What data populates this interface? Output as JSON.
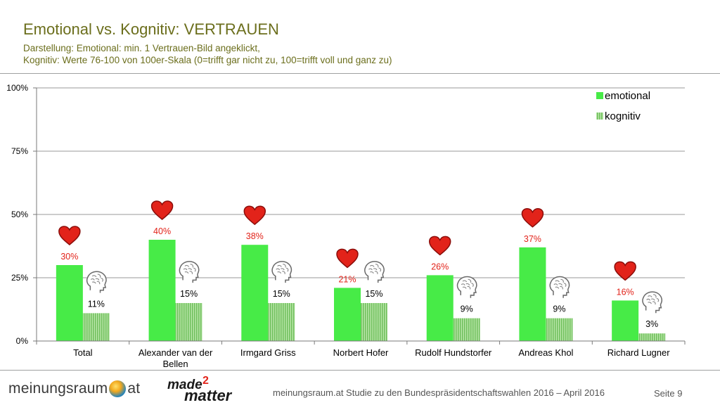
{
  "header": {
    "title": "Emotional vs. Kognitiv: VERTRAUEN",
    "subtitle_line1": "Darstellung: Emotional: min. 1 Vertrauen-Bild angeklickt,",
    "subtitle_line2": "Kognitiv: Werte 76-100 von 100er-Skala (0=trifft gar nicht zu, 100=trifft voll und ganz zu)"
  },
  "chart_data": {
    "type": "bar",
    "categories": [
      "Total",
      "Alexander van der Bellen",
      "Irmgard Griss",
      "Norbert Hofer",
      "Rudolf Hundstorfer",
      "Andreas Khol",
      "Richard Lugner"
    ],
    "category_lines": [
      [
        "Total"
      ],
      [
        "Alexander van der",
        "Bellen"
      ],
      [
        "Irmgard Griss"
      ],
      [
        "Norbert Hofer"
      ],
      [
        "Rudolf Hundstorfer"
      ],
      [
        "Andreas Khol"
      ],
      [
        "Richard Lugner"
      ]
    ],
    "series": [
      {
        "name": "emotional",
        "values": [
          30,
          40,
          38,
          21,
          26,
          37,
          16
        ],
        "labels": [
          "30%",
          "40%",
          "38%",
          "21%",
          "26%",
          "37%",
          "16%"
        ],
        "color": "#47eb47",
        "icon": "heart-icon"
      },
      {
        "name": "kognitiv",
        "values": [
          11,
          15,
          15,
          15,
          9,
          9,
          3
        ],
        "labels": [
          "11%",
          "15%",
          "15%",
          "15%",
          "9%",
          "9%",
          "3%"
        ],
        "color": "#8fcf7a",
        "icon": "brain-icon"
      }
    ],
    "ylim": [
      0,
      100
    ],
    "yticks": [
      0,
      25,
      50,
      75,
      100
    ],
    "ytick_labels": [
      "0%",
      "25%",
      "50%",
      "75%",
      "100%"
    ],
    "legend": "top-right",
    "colors": {
      "emotional_label": "#e2231a",
      "kognitiv_label": "#000000"
    }
  },
  "footer": {
    "logo_left_a": "meinungsraum",
    "logo_left_b": "at",
    "logo_right_made": "made",
    "logo_right_two": "2",
    "logo_right_matter": "matter",
    "study_text": "meinungsraum.at Studie zu den Bundespräsidentschaftswahlen 2016 – April 2016",
    "page": "Seite 9"
  }
}
